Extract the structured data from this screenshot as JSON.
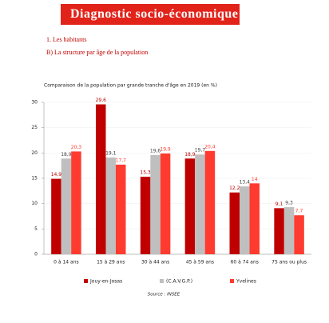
{
  "header": {
    "title": "Diagnostic socio-économique"
  },
  "section": "1. Les habitants",
  "subsection": "B) La structure par âge de la population",
  "chart_data": {
    "type": "bar",
    "title": "Comparaison de la population par grande tranche d'âge en 2019 (en %)",
    "categories": [
      "0 à 14 ans",
      "15 à 29 ans",
      "30 à 44 ans",
      "45 à 59 ans",
      "60 à 74 ans",
      "75 ans ou plus"
    ],
    "series": [
      {
        "name": "Jouy-en-Josas",
        "color": "#c00000",
        "label_color": "#c00000",
        "values": [
          14.9,
          29.6,
          15.3,
          18.9,
          12.2,
          9.1
        ],
        "value_labels": [
          "14,9",
          "29,6",
          "15,3",
          "18,9",
          "12,2",
          "9,1"
        ]
      },
      {
        "name": "(C.A.V.G.P.)",
        "color": "#bfbfbf",
        "label_color": "#404040",
        "values": [
          18.9,
          19.1,
          19.6,
          19.7,
          13.4,
          9.3
        ],
        "value_labels": [
          "18,9",
          "19,1",
          "19,6",
          "19,7",
          "13,4",
          "9,3"
        ]
      },
      {
        "name": "Yvelines",
        "color": "#ff3b30",
        "label_color": "#ff3b30",
        "values": [
          20.3,
          17.7,
          19.9,
          20.4,
          14,
          7.7
        ],
        "value_labels": [
          "20,3",
          "17,7",
          "19,9",
          "20,4",
          "14",
          "7,7"
        ]
      }
    ],
    "ylim": [
      0,
      30
    ],
    "yticks": [
      0,
      5,
      10,
      15,
      20,
      25,
      30
    ],
    "grid": true,
    "legend": "bottom",
    "source": "Source : INSEE"
  }
}
